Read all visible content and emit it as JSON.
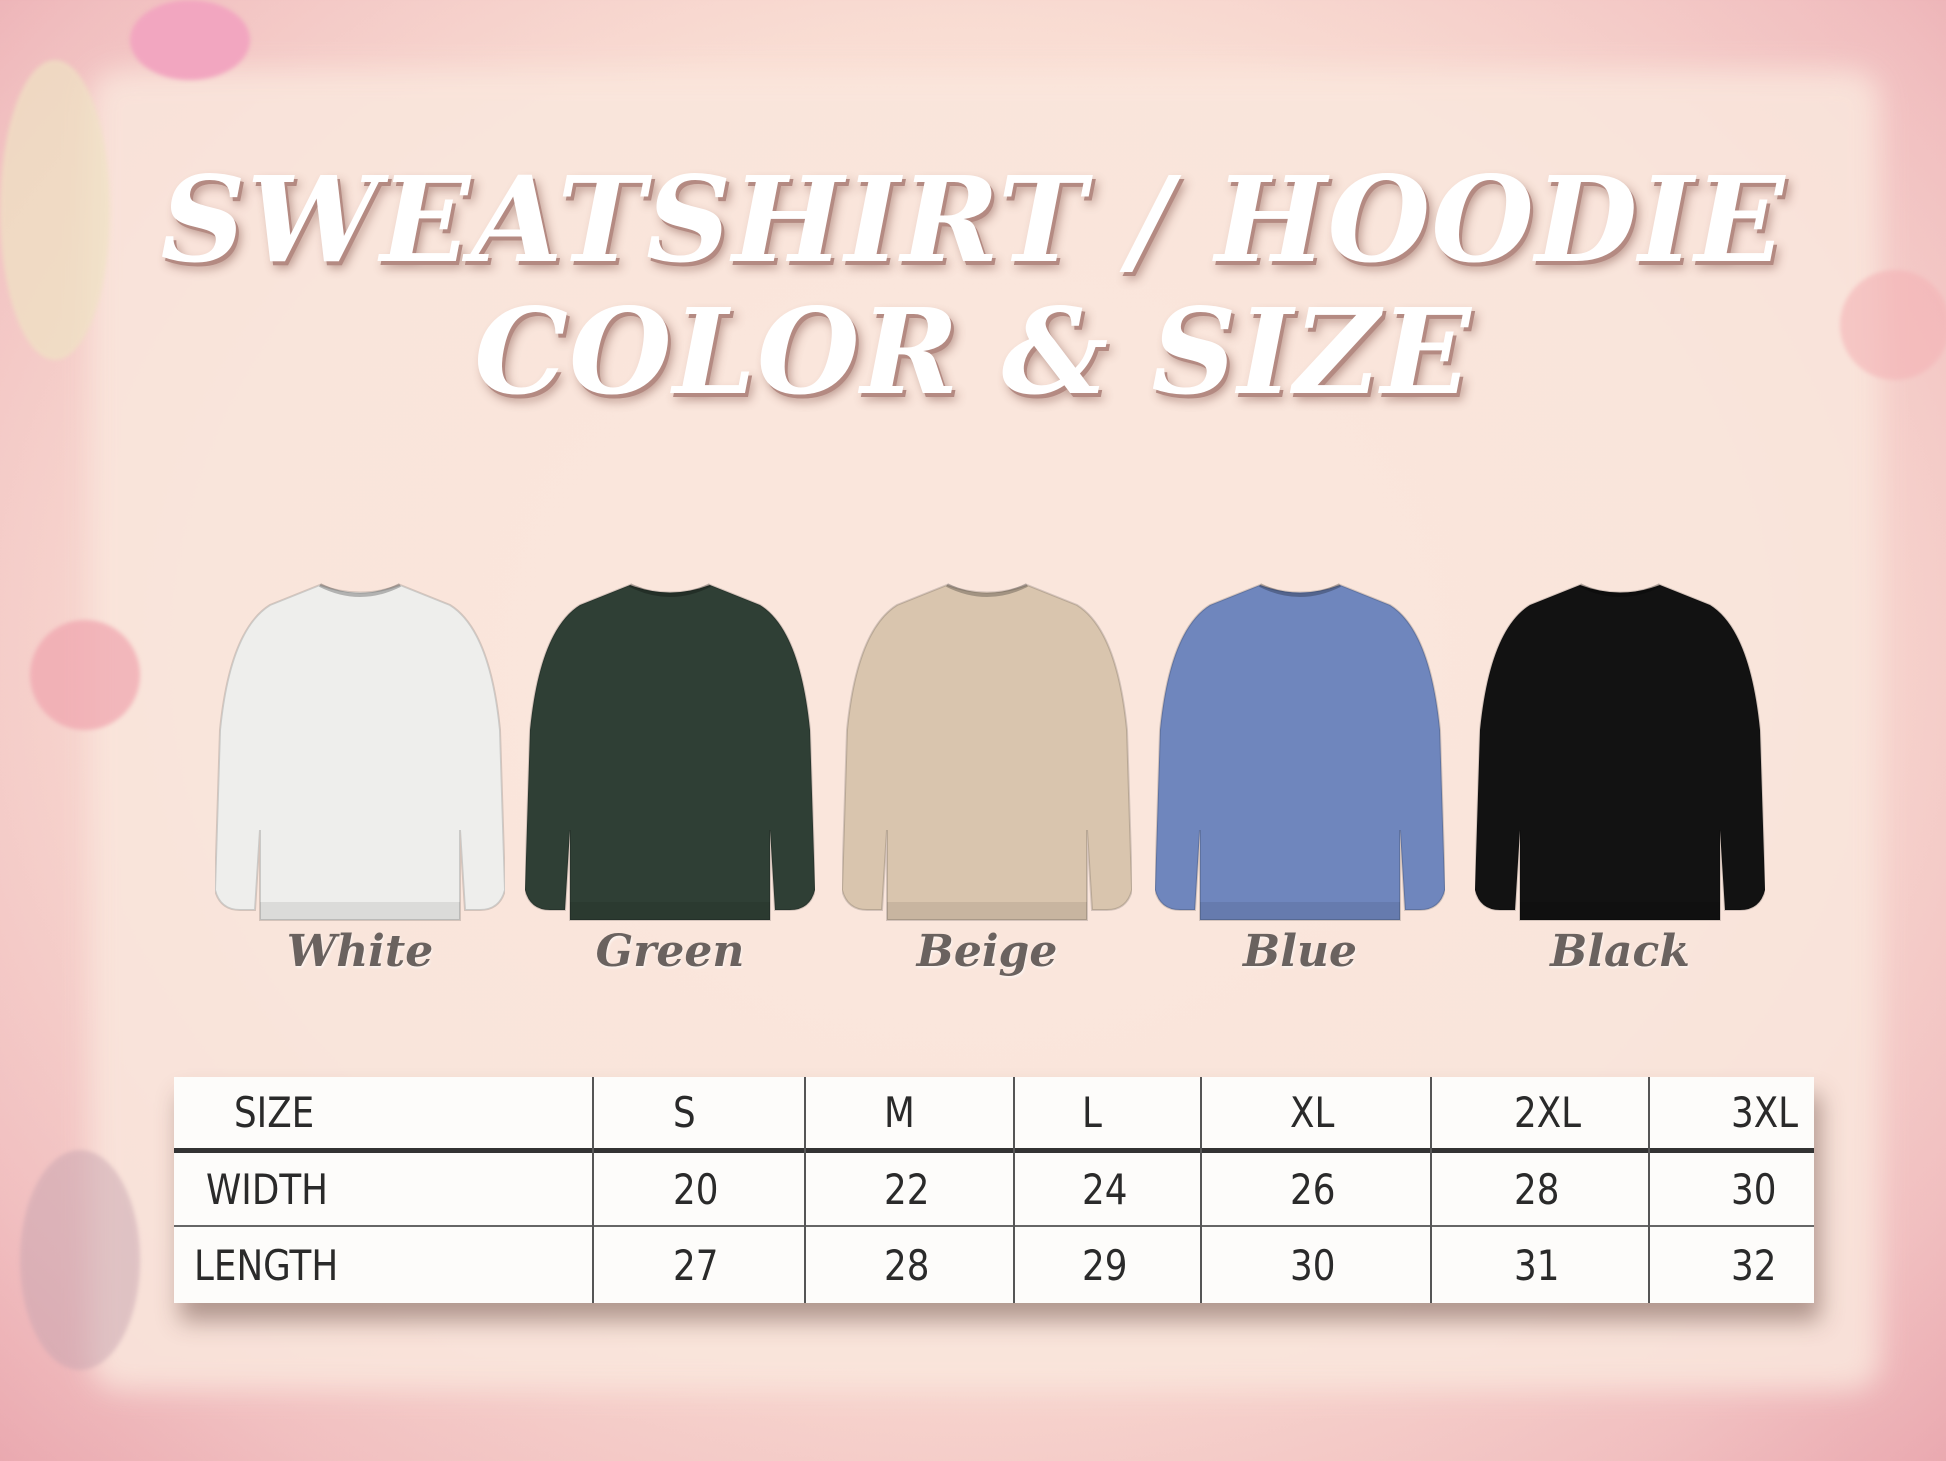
{
  "title": {
    "line1": "SWEATSHIRT / HOODIE",
    "line2": "COLOR & SIZE"
  },
  "colors": [
    {
      "label": "White",
      "hex": "#eeeeec"
    },
    {
      "label": "Green",
      "hex": "#2f3f35"
    },
    {
      "label": "Beige",
      "hex": "#d9c5ae"
    },
    {
      "label": "Blue",
      "hex": "#6f86bd"
    },
    {
      "label": "Black",
      "hex": "#121212"
    }
  ],
  "size_table": {
    "header": [
      "SIZE",
      "S",
      "M",
      "L",
      "XL",
      "2XL",
      "3XL"
    ],
    "rows": [
      [
        "WIDTH",
        "20",
        "22",
        "24",
        "26",
        "28",
        "30"
      ],
      [
        "LENGTH",
        "27",
        "28",
        "29",
        "30",
        "31",
        "32"
      ]
    ]
  }
}
